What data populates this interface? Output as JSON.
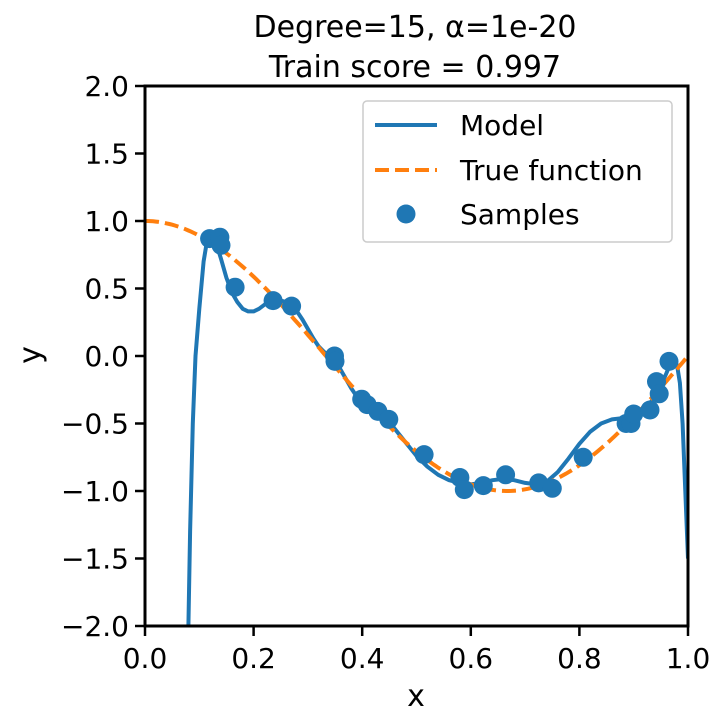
{
  "chart_data": {
    "type": "line",
    "title": "Degree=15, α=1e-20",
    "subtitle": "Train score = 0.997",
    "xlabel": "x",
    "ylabel": "y",
    "xlim": [
      0.0,
      1.0
    ],
    "ylim": [
      -2.0,
      2.0
    ],
    "xticks": [
      "0.0",
      "0.2",
      "0.4",
      "0.6",
      "0.8",
      "1.0"
    ],
    "yticks": [
      "2.0",
      "1.5",
      "1.0",
      "0.5",
      "0.0",
      "−0.5",
      "−1.0",
      "−1.5",
      "−2.0"
    ],
    "grid": false,
    "legend_position": "top-right",
    "series": [
      {
        "name": "Model",
        "kind": "line",
        "color": "#1f77b4",
        "x": [
          0.08,
          0.083,
          0.088,
          0.093,
          0.1,
          0.108,
          0.115,
          0.122,
          0.13,
          0.14,
          0.15,
          0.16,
          0.17,
          0.18,
          0.19,
          0.2,
          0.21,
          0.22,
          0.23,
          0.24,
          0.25,
          0.26,
          0.27,
          0.28,
          0.29,
          0.3,
          0.31,
          0.32,
          0.33,
          0.34,
          0.35,
          0.36,
          0.37,
          0.38,
          0.39,
          0.4,
          0.41,
          0.42,
          0.43,
          0.44,
          0.45,
          0.46,
          0.48,
          0.5,
          0.52,
          0.54,
          0.56,
          0.58,
          0.6,
          0.62,
          0.64,
          0.66,
          0.68,
          0.7,
          0.72,
          0.74,
          0.76,
          0.78,
          0.8,
          0.82,
          0.84,
          0.86,
          0.88,
          0.9,
          0.91,
          0.92,
          0.93,
          0.94,
          0.95,
          0.96,
          0.965,
          0.97,
          0.975,
          0.98,
          0.985,
          0.99,
          0.995,
          1.0
        ],
        "y": [
          -2.0,
          -1.3,
          -0.5,
          0.0,
          0.35,
          0.7,
          0.87,
          0.9,
          0.85,
          0.72,
          0.58,
          0.47,
          0.4,
          0.35,
          0.33,
          0.33,
          0.35,
          0.38,
          0.41,
          0.42,
          0.41,
          0.4,
          0.37,
          0.33,
          0.27,
          0.2,
          0.13,
          0.07,
          0.03,
          0.0,
          -0.04,
          -0.1,
          -0.17,
          -0.24,
          -0.3,
          -0.33,
          -0.36,
          -0.39,
          -0.42,
          -0.45,
          -0.49,
          -0.54,
          -0.64,
          -0.74,
          -0.82,
          -0.88,
          -0.92,
          -0.94,
          -0.95,
          -0.94,
          -0.92,
          -0.91,
          -0.92,
          -0.94,
          -0.95,
          -0.93,
          -0.86,
          -0.76,
          -0.65,
          -0.56,
          -0.5,
          -0.47,
          -0.46,
          -0.44,
          -0.42,
          -0.39,
          -0.35,
          -0.29,
          -0.22,
          -0.13,
          -0.08,
          -0.04,
          -0.03,
          -0.07,
          -0.2,
          -0.5,
          -1.0,
          -1.5
        ]
      },
      {
        "name": "True function",
        "kind": "dashed-line",
        "color": "#ff7f0e",
        "function": "cos(1.5*pi*x)"
      },
      {
        "name": "Samples",
        "kind": "scatter",
        "color": "#1f77b4",
        "x": [
          0.119,
          0.138,
          0.14,
          0.166,
          0.236,
          0.27,
          0.349,
          0.35,
          0.399,
          0.409,
          0.429,
          0.449,
          0.514,
          0.58,
          0.588,
          0.623,
          0.664,
          0.725,
          0.75,
          0.807,
          0.886,
          0.895,
          0.9,
          0.93,
          0.942,
          0.947,
          0.965
        ],
        "y": [
          0.87,
          0.88,
          0.82,
          0.51,
          0.41,
          0.37,
          0.0,
          -0.04,
          -0.32,
          -0.36,
          -0.41,
          -0.47,
          -0.73,
          -0.9,
          -0.99,
          -0.96,
          -0.88,
          -0.94,
          -0.98,
          -0.75,
          -0.5,
          -0.5,
          -0.43,
          -0.4,
          -0.19,
          -0.28,
          -0.04
        ]
      }
    ]
  }
}
